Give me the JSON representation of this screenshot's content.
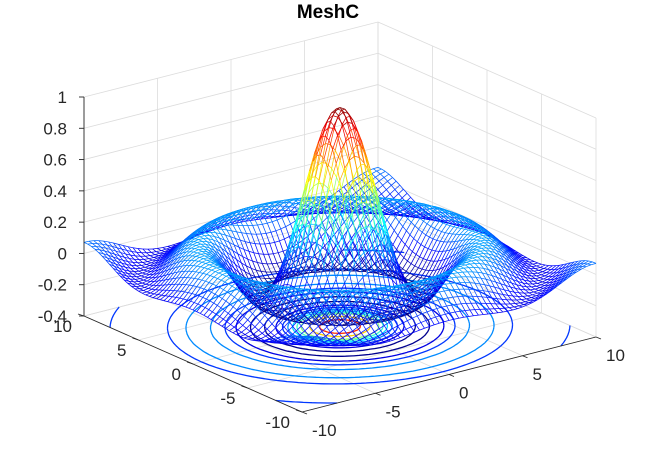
{
  "window": {
    "title": "MeshC"
  },
  "chart_data": {
    "type": "mesh",
    "title": "MeshC",
    "function": "z = sin(sqrt(x^2 + y^2)) / sqrt(x^2 + y^2)",
    "colormap": "jet",
    "plot_style": "mesh with contour lines below",
    "x_range": [
      -10,
      10
    ],
    "y_range": [
      -10,
      10
    ],
    "z_range": [
      -0.4,
      1
    ],
    "grid_resolution": 61,
    "contour_levels": [
      -0.2,
      -0.1,
      0,
      0.1,
      0.2,
      0.3,
      0.4,
      0.6,
      0.8
    ],
    "contour_plane_z": -0.4,
    "grid": true,
    "x_ticks": [
      -10,
      -5,
      0,
      5,
      10
    ],
    "x_tick_labels": [
      "-10",
      "-5",
      "0",
      "5",
      "10"
    ],
    "y_ticks": [
      -10,
      -5,
      0,
      5,
      10
    ],
    "y_tick_labels": [
      "-10",
      "-5",
      "0",
      "5",
      "10"
    ],
    "z_ticks": [
      -0.4,
      -0.2,
      0,
      0.2,
      0.4,
      0.6,
      0.8,
      1
    ],
    "z_tick_labels": [
      "-0.4",
      "-0.2",
      "0",
      "0.2",
      "0.4",
      "0.6",
      "0.8",
      "1"
    ]
  }
}
